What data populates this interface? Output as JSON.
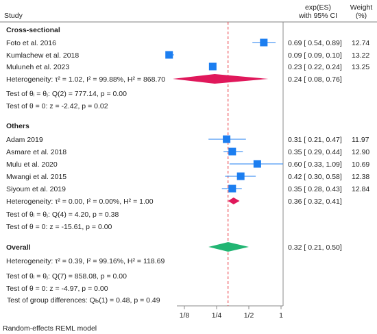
{
  "chart_data": {
    "type": "forest",
    "headers": {
      "study": "Study",
      "es_line1": "exp(ES)",
      "es_line2": "with 95% CI",
      "weight_line1": "Weight",
      "weight_line2": "(%)"
    },
    "x_scale": "log2",
    "xlim": [
      0.0625,
      1.15
    ],
    "x_ticks": [
      {
        "value": 0.125,
        "label": "1/8"
      },
      {
        "value": 0.25,
        "label": "1/4"
      },
      {
        "value": 0.5,
        "label": "1/2"
      },
      {
        "value": 1,
        "label": "1"
      }
    ],
    "reference_line": {
      "value": 0.32,
      "color": "#e8313a",
      "style": "dashed"
    },
    "colors": {
      "study": "#1c7ef0",
      "subgroup_diamond": "#e0185b",
      "overall_diamond": "#22b573",
      "axis": "#888888"
    },
    "groups": [
      {
        "name": "Cross-sectional",
        "studies": [
          {
            "label": "Foto et al. 2016",
            "es": 0.69,
            "lo": 0.54,
            "hi": 0.89,
            "ci_text": "0.69 [ 0.54, 0.89]",
            "weight": "12.74"
          },
          {
            "label": "Kumlachew et al. 2018",
            "es": 0.09,
            "lo": 0.09,
            "hi": 0.1,
            "ci_text": "0.09 [ 0.09, 0.10]",
            "weight": "13.22"
          },
          {
            "label": "Muluneh et al. 2023",
            "es": 0.23,
            "lo": 0.22,
            "hi": 0.24,
            "ci_text": "0.23 [ 0.22, 0.24]",
            "weight": "13.25"
          }
        ],
        "summary": {
          "label": "Heterogeneity: τ² = 1.02, I² = 99.88%, H² = 868.70",
          "es": 0.24,
          "lo": 0.08,
          "hi": 0.76,
          "ci_text": "0.24 [ 0.08, 0.76]"
        },
        "tests": [
          "Test of θᵢ = θⱼ: Q(2) = 777.14, p = 0.00",
          "Test of θ = 0: z = -2.42, p = 0.02"
        ]
      },
      {
        "name": "Others",
        "studies": [
          {
            "label": "Adam 2019",
            "es": 0.31,
            "lo": 0.21,
            "hi": 0.47,
            "ci_text": "0.31 [ 0.21, 0.47]",
            "weight": "11.97"
          },
          {
            "label": "Asmare et al. 2018",
            "es": 0.35,
            "lo": 0.29,
            "hi": 0.44,
            "ci_text": "0.35 [ 0.29, 0.44]",
            "weight": "12.90"
          },
          {
            "label": "Mulu et al. 2020",
            "es": 0.6,
            "lo": 0.33,
            "hi": 1.09,
            "ci_text": "0.60 [ 0.33, 1.09]",
            "weight": "10.69"
          },
          {
            "label": "Mwangi et al. 2015",
            "es": 0.42,
            "lo": 0.3,
            "hi": 0.58,
            "ci_text": "0.42 [ 0.30, 0.58]",
            "weight": "12.38"
          },
          {
            "label": "Siyoum et al. 2019",
            "es": 0.35,
            "lo": 0.28,
            "hi": 0.43,
            "ci_text": "0.35 [ 0.28, 0.43]",
            "weight": "12.84"
          }
        ],
        "summary": {
          "label": "Heterogeneity: τ² = 0.00, I² = 0.00%, H² = 1.00",
          "es": 0.36,
          "lo": 0.32,
          "hi": 0.41,
          "ci_text": "0.36 [ 0.32, 0.41]"
        },
        "tests": [
          "Test of θᵢ = θⱼ: Q(4) = 4.20, p = 0.38",
          "Test of θ = 0: z = -15.61, p = 0.00"
        ]
      }
    ],
    "overall": {
      "name": "Overall",
      "es": 0.32,
      "lo": 0.21,
      "hi": 0.5,
      "ci_text": "0.32 [ 0.21, 0.50]",
      "heterogeneity": "Heterogeneity: τ² = 0.39, I² = 99.16%, H² = 118.69",
      "tests": [
        "Test of θᵢ = θⱼ: Q(7) = 858.08, p = 0.00",
        "Test of θ = 0: z = -4.97, p = 0.00"
      ]
    },
    "group_difference_test": "Test of group differences: Qь(1) = 0.48, p = 0.49",
    "footnote": "Random-effects REML model"
  }
}
